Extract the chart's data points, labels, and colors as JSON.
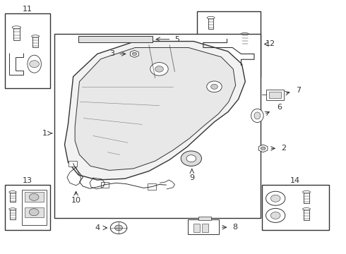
{
  "bg_color": "#ffffff",
  "line_color": "#333333",
  "fig_width": 4.9,
  "fig_height": 3.6,
  "dpi": 100
}
